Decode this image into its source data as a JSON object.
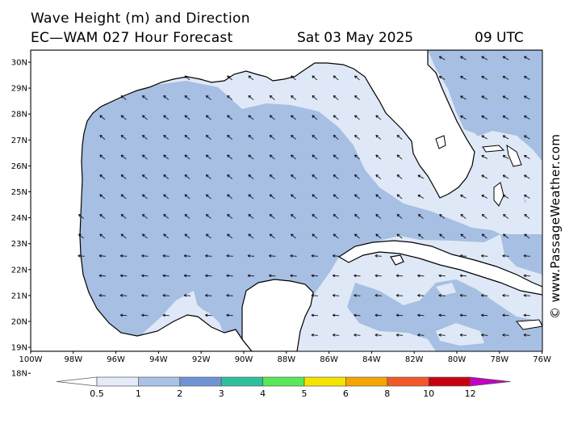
{
  "header": {
    "line1": "Wave Height (m) and Direction",
    "line2": "EC—WAM 027 Hour Forecast",
    "date": "Sat 03 May 2025",
    "time": "09 UTC"
  },
  "credit": "© www.PassageWeather.com",
  "lat_labels": [
    "30N",
    "29N",
    "28N",
    "27N",
    "26N",
    "25N",
    "24N",
    "23N",
    "22N",
    "21N",
    "20N",
    "19N",
    "18N"
  ],
  "lon_labels": [
    "100W",
    "98W",
    "96W",
    "94W",
    "92W",
    "90W",
    "88W",
    "86W",
    "84W",
    "82W",
    "80W",
    "78W",
    "76W"
  ],
  "colorbar": {
    "labels": [
      "0.5",
      "1",
      "2",
      "3",
      "4",
      "5",
      "6",
      "8",
      "10",
      "12"
    ],
    "colors": [
      "#e3ebf8",
      "#a9c2e6",
      "#6e94d6",
      "#2fbf9f",
      "#58e85a",
      "#f5e400",
      "#f5a400",
      "#f05a28",
      "#c8000f",
      "#c400c4"
    ]
  },
  "colors": {
    "land": "#ffffff",
    "sea_low": "#dfe8f6",
    "sea_mid": "#a6bfe2",
    "arrow": "#111111"
  },
  "arrow_icon": "wave-direction-arrow-icon"
}
